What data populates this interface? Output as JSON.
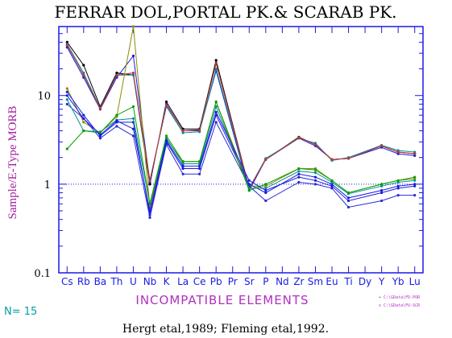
{
  "chart_data": {
    "type": "line",
    "title": "FERRAR DOL,PORTAL PK.& SCARAB PK.",
    "ylabel": "Sample/E-Type MORB",
    "xlabel": "INCOMPATIBLE ELEMENTS",
    "y_scale": "log",
    "ylim": [
      0.1,
      60
    ],
    "yticks": [
      {
        "value": 0.1,
        "label": "0.1"
      },
      {
        "value": 1,
        "label": "1"
      },
      {
        "value": 10,
        "label": "10"
      }
    ],
    "reference_line": 1,
    "categories": [
      "Cs",
      "Rb",
      "Ba",
      "Th",
      "U",
      "Nb",
      "K",
      "La",
      "Ce",
      "Pb",
      "Pr",
      "Sr",
      "P",
      "Nd",
      "Zr",
      "Sm",
      "Eu",
      "Ti",
      "Dy",
      "Y",
      "Yb",
      "Lu"
    ],
    "series": [
      {
        "color": "#000000",
        "values": [
          40,
          22,
          7.5,
          18,
          17,
          1.0,
          8.5,
          4.2,
          4.2,
          25,
          null,
          0.9,
          1.9,
          null,
          3.4,
          2.8,
          1.9,
          1.95,
          null,
          2.7,
          2.3,
          2.2
        ]
      },
      {
        "color": "#1a1ae6",
        "values": [
          35,
          16,
          7.0,
          16,
          28,
          1.05,
          8.0,
          4.0,
          4.0,
          19,
          null,
          0.85,
          1.9,
          null,
          3.3,
          2.7,
          1.9,
          1.95,
          null,
          2.6,
          2.2,
          2.1
        ]
      },
      {
        "color": "#009090",
        "values": [
          38,
          18,
          7.2,
          17,
          17,
          1.1,
          7.5,
          3.8,
          3.9,
          20,
          null,
          0.9,
          1.95,
          null,
          3.3,
          2.9,
          1.85,
          2.0,
          null,
          2.75,
          2.4,
          2.3
        ]
      },
      {
        "color": "#c83232",
        "values": [
          37,
          17,
          7.1,
          17,
          18,
          1.1,
          7.8,
          4.0,
          4.1,
          23,
          null,
          0.9,
          1.9,
          null,
          3.35,
          2.8,
          1.9,
          1.95,
          null,
          2.7,
          2.3,
          2.2
        ]
      },
      {
        "color": "#8c8c00",
        "values": [
          12,
          5.0,
          3.8,
          5.8,
          60,
          0.55,
          3.2,
          1.8,
          1.8,
          8.5,
          null,
          0.95,
          0.95,
          null,
          1.5,
          1.5,
          1.1,
          0.8,
          null,
          1.0,
          1.1,
          1.15
        ]
      },
      {
        "color": "#1a1ae6",
        "values": [
          11,
          6.0,
          3.5,
          5.0,
          5.0,
          0.45,
          3.0,
          1.5,
          1.5,
          6.0,
          null,
          1.0,
          0.8,
          null,
          1.3,
          1.2,
          1.0,
          0.7,
          null,
          0.85,
          0.95,
          1.0
        ]
      },
      {
        "color": "#2a2ad6",
        "values": [
          8,
          5.5,
          3.3,
          4.5,
          3.5,
          0.42,
          2.8,
          1.3,
          1.3,
          5.0,
          null,
          0.95,
          0.65,
          null,
          1.05,
          1.0,
          0.9,
          0.55,
          null,
          0.65,
          0.75,
          0.75
        ]
      },
      {
        "color": "#009090",
        "values": [
          9,
          4.0,
          3.9,
          5.3,
          5.5,
          0.6,
          3.3,
          1.7,
          1.7,
          7.5,
          null,
          0.9,
          0.9,
          null,
          1.4,
          1.35,
          1.05,
          0.78,
          null,
          0.95,
          1.05,
          1.1
        ]
      },
      {
        "color": "#00a000",
        "values": [
          2.5,
          4.0,
          3.8,
          6.0,
          7.5,
          0.6,
          3.5,
          1.8,
          1.8,
          8.5,
          null,
          0.85,
          1.0,
          null,
          1.5,
          1.45,
          1.1,
          0.8,
          null,
          1.0,
          1.1,
          1.2
        ]
      },
      {
        "color": "#1a1ae6",
        "values": [
          10,
          5.5,
          3.6,
          5.2,
          4.2,
          0.5,
          3.1,
          1.6,
          1.6,
          6.5,
          null,
          1.1,
          0.85,
          null,
          1.2,
          1.1,
          0.95,
          0.65,
          null,
          0.8,
          0.9,
          0.95
        ]
      }
    ]
  },
  "footer": {
    "n_label": "N= 15",
    "source": "Hergt etal,1989; Fleming etal,1992.",
    "legend_1": "+ C:\\GData\\FD-POR",
    "legend_2": "x C:\\GData\\FU-SCR"
  }
}
